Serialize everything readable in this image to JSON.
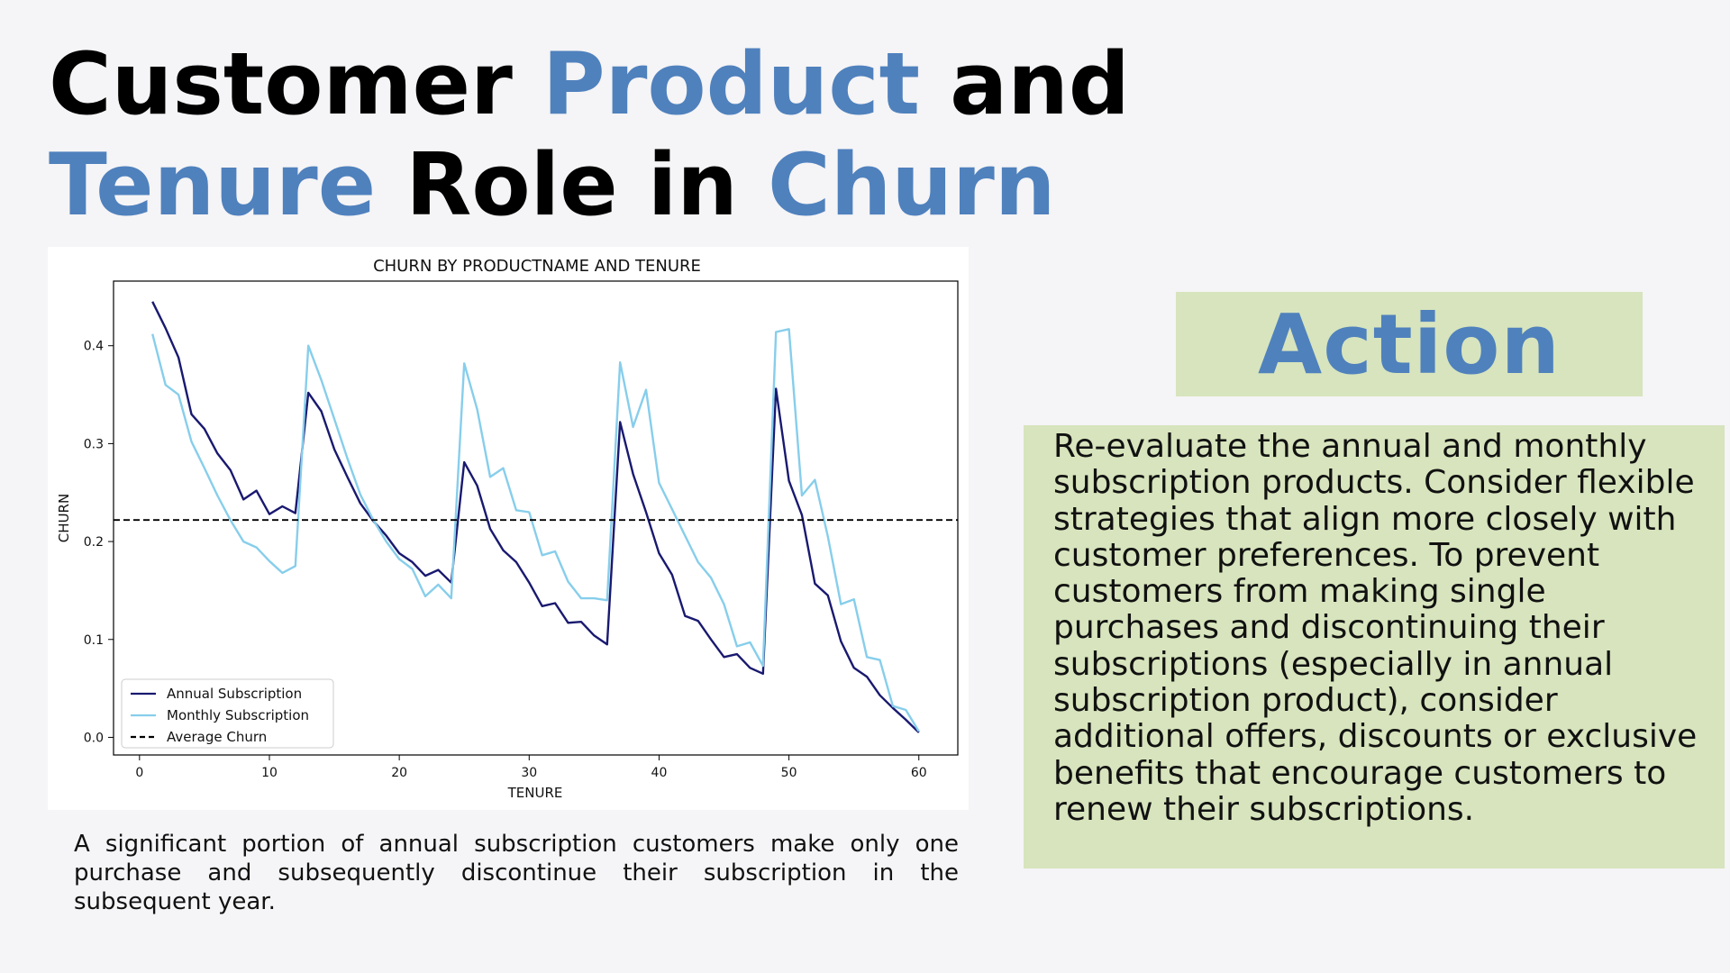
{
  "title": {
    "w1": "Customer",
    "w2": "Product",
    "w3": "and",
    "w4": "Tenure",
    "w5": "Role in",
    "w6": "Churn"
  },
  "caption": "A significant portion of annual subscription customers make only one purchase and subsequently discontinue their subscription in the subsequent year.",
  "action": {
    "title": "Action",
    "text": "Re-evaluate the annual and monthly subscription products. Consider flexible strategies that align more closely with customer preferences. To prevent customers from making single purchases and discontinuing their subscriptions (especially in annual subscription product), consider additional offers, discounts or exclusive benefits that encourage customers to renew their subscriptions."
  },
  "colors": {
    "accent": "#4f81bd",
    "action_bg": "#d7e4bd",
    "annual": "#191970",
    "monthly": "#87ceeb"
  },
  "chart_data": {
    "type": "line",
    "title": "CHURN BY PRODUCTNAME AND TENURE",
    "xlabel": "TENURE",
    "ylabel": "CHURN",
    "xlim": [
      -2,
      63
    ],
    "ylim": [
      -0.018,
      0.466
    ],
    "xticks": [
      0,
      10,
      20,
      30,
      40,
      50,
      60
    ],
    "yticks": [
      0.0,
      0.1,
      0.2,
      0.3,
      0.4
    ],
    "ytick_labels": [
      "0.0",
      "0.1",
      "0.2",
      "0.3",
      "0.4"
    ],
    "grid": false,
    "legend_position": "lower-left",
    "x": [
      1,
      2,
      3,
      4,
      5,
      6,
      7,
      8,
      9,
      10,
      11,
      12,
      13,
      14,
      15,
      16,
      17,
      18,
      19,
      20,
      21,
      22,
      23,
      24,
      25,
      26,
      27,
      28,
      29,
      30,
      31,
      32,
      33,
      34,
      35,
      36,
      37,
      38,
      39,
      40,
      41,
      42,
      43,
      44,
      45,
      46,
      47,
      48,
      49,
      50,
      51,
      52,
      53,
      54,
      55,
      56,
      57,
      58,
      59,
      60
    ],
    "series": [
      {
        "name": "Annual Subscription",
        "color": "#191970",
        "dashed": false,
        "values": [
          0.445,
          0.418,
          0.388,
          0.33,
          0.315,
          0.29,
          0.273,
          0.243,
          0.252,
          0.228,
          0.236,
          0.229,
          0.352,
          0.333,
          0.294,
          0.266,
          0.239,
          0.221,
          0.206,
          0.188,
          0.179,
          0.165,
          0.171,
          0.158,
          0.281,
          0.257,
          0.213,
          0.191,
          0.179,
          0.158,
          0.134,
          0.137,
          0.117,
          0.118,
          0.104,
          0.095,
          0.322,
          0.269,
          0.23,
          0.188,
          0.166,
          0.124,
          0.119,
          0.1,
          0.082,
          0.085,
          0.071,
          0.065,
          0.356,
          0.262,
          0.227,
          0.157,
          0.145,
          0.098,
          0.071,
          0.062,
          0.043,
          0.03,
          0.018,
          0.005
        ]
      },
      {
        "name": "Monthly Subscription",
        "color": "#87ceeb",
        "dashed": false,
        "values": [
          0.412,
          0.36,
          0.35,
          0.302,
          0.275,
          0.247,
          0.222,
          0.2,
          0.194,
          0.18,
          0.168,
          0.175,
          0.4,
          0.365,
          0.325,
          0.285,
          0.248,
          0.222,
          0.2,
          0.182,
          0.172,
          0.144,
          0.156,
          0.142,
          0.382,
          0.335,
          0.266,
          0.275,
          0.232,
          0.23,
          0.186,
          0.19,
          0.159,
          0.142,
          0.142,
          0.14,
          0.383,
          0.317,
          0.355,
          0.26,
          0.233,
          0.206,
          0.179,
          0.163,
          0.136,
          0.093,
          0.097,
          0.073,
          0.414,
          0.417,
          0.247,
          0.263,
          0.205,
          0.136,
          0.141,
          0.082,
          0.079,
          0.032,
          0.028,
          0.006
        ]
      },
      {
        "name": "Average Churn",
        "color": "#000000",
        "dashed": true,
        "constant": 0.222
      }
    ]
  }
}
